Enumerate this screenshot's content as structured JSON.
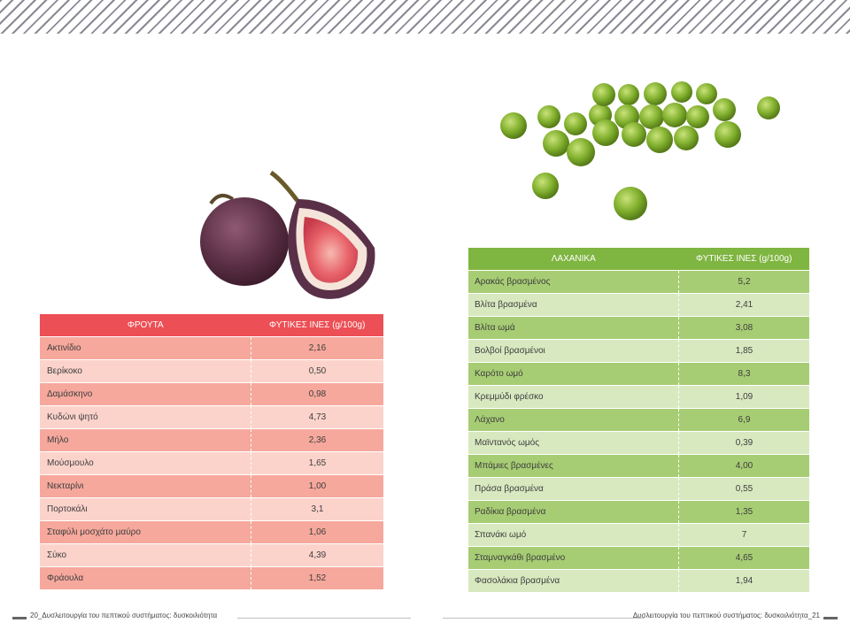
{
  "fruits": {
    "header": {
      "name": "ΦΡΟΥΤΑ",
      "value": "ΦΥΤΙΚΕΣ ΙΝΕΣ (g/100g)"
    },
    "rows": [
      {
        "name": "Ακτινίδιο",
        "value": "2,16"
      },
      {
        "name": "Βερίκοκο",
        "value": "0,50"
      },
      {
        "name": "Δαμάσκηνο",
        "value": "0,98"
      },
      {
        "name": "Κυδώνι ψητό",
        "value": "4,73"
      },
      {
        "name": "Μήλο",
        "value": "2,36"
      },
      {
        "name": "Μούσμουλο",
        "value": "1,65"
      },
      {
        "name": "Νεκταρίνι",
        "value": "1,00"
      },
      {
        "name": "Πορτοκάλι",
        "value": "3,1"
      },
      {
        "name": "Σταφύλι μοσχάτο μαύρο",
        "value": "1,06"
      },
      {
        "name": "Σύκο",
        "value": "4,39"
      },
      {
        "name": "Φράουλα",
        "value": "1,52"
      }
    ]
  },
  "vegetables": {
    "header": {
      "name": "ΛΑΧΑΝΙΚΑ",
      "value": "ΦΥΤΙΚΕΣ ΙΝΕΣ (g/100g)"
    },
    "rows": [
      {
        "name": "Αρακάς βρασμένος",
        "value": "5,2"
      },
      {
        "name": "Βλίτα βρασμένα",
        "value": "2,41"
      },
      {
        "name": "Βλίτα ωμά",
        "value": "3,08"
      },
      {
        "name": "Βολβοί βρασμένοι",
        "value": "1,85"
      },
      {
        "name": "Καρότο ωμό",
        "value": "8,3"
      },
      {
        "name": "Κρεμμύδι φρέσκο",
        "value": "1,09"
      },
      {
        "name": "Λάχανο",
        "value": "6,9"
      },
      {
        "name": "Μαϊντανός ωμός",
        "value": "0,39"
      },
      {
        "name": "Μπάμιες βρασμένες",
        "value": "4,00"
      },
      {
        "name": "Πράσα βρασμένα",
        "value": "0,55"
      },
      {
        "name": "Ραδίκια βρασμένα",
        "value": "1,35"
      },
      {
        "name": "Σπανάκι ωμό",
        "value": "7"
      },
      {
        "name": "Σταμναγκάθι βρασμένο",
        "value": "4,65"
      },
      {
        "name": "Φασολάκια βρασμένα",
        "value": "1,94"
      }
    ]
  },
  "footer": {
    "left": "20_Δυσλειτουργία του πεπτικού συστήματος: δυσκοιλιότητα",
    "right": "Δυσλειτουργία του πεπτικού συστήματος: δυσκοιλιότητα_21"
  },
  "colors": {
    "fruit_header": "#ec4f55",
    "fruit_row_dark": "#f6a89c",
    "fruit_row_light": "#fcd3cb",
    "veg_header": "#7fb541",
    "veg_row_dark": "#a7cd74",
    "veg_row_light": "#d8e9c0"
  }
}
